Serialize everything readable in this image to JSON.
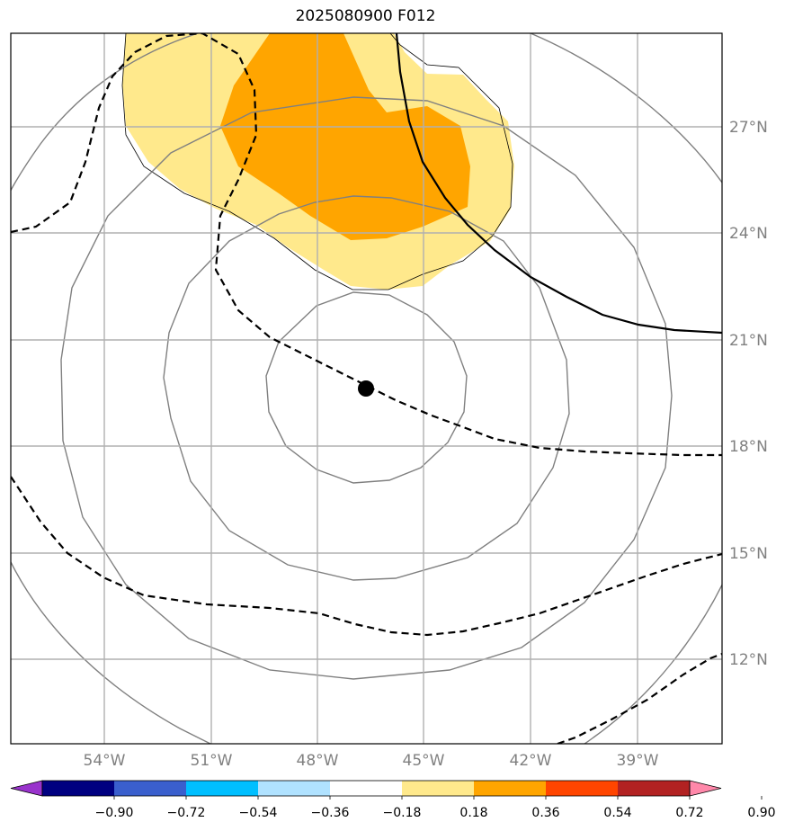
{
  "title": "2025080900 F012",
  "lat_labels": [
    "27°N",
    "24°N",
    "21°N",
    "18°N",
    "15°N",
    "12°N"
  ],
  "lon_labels": [
    "54°W",
    "51°W",
    "48°W",
    "45°W",
    "42°W",
    "39°W"
  ],
  "colorbar": {
    "tick_labels": [
      "−0.90",
      "−0.72",
      "−0.54",
      "−0.36",
      "−0.18",
      "0.18",
      "0.36",
      "0.54",
      "0.72",
      "0.90"
    ],
    "colors": [
      "#9933cc",
      "#000080",
      "#3a5fcd",
      "#00bfff",
      "#b0e2ff",
      "#ffffff",
      "#ffe98c",
      "#ffa500",
      "#ff4500",
      "#b22222",
      "#ff88aa"
    ]
  },
  "center_marker": "storm-center"
}
